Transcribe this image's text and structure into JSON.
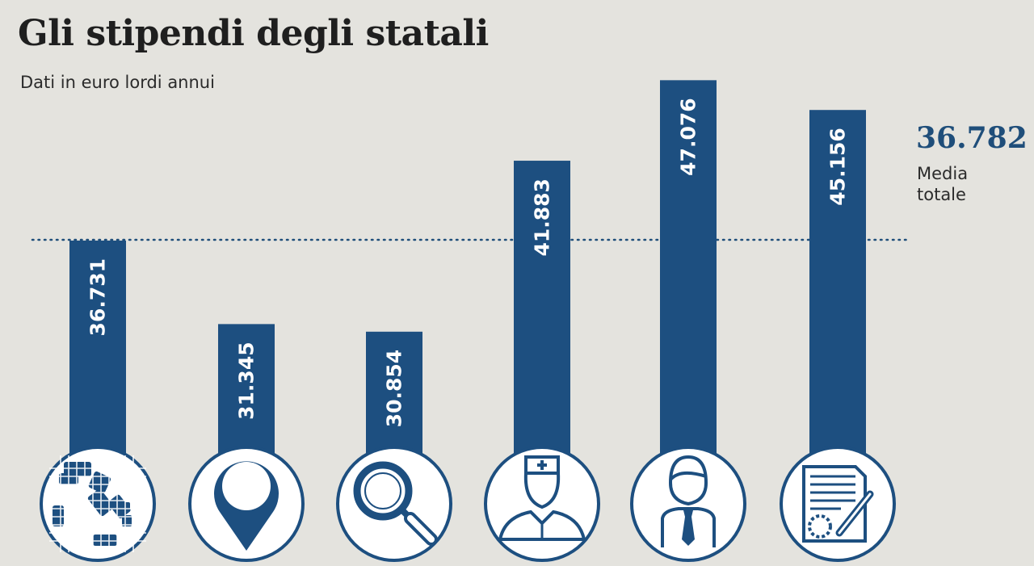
{
  "header": {
    "title": "Gli stipendi degli statali",
    "subtitle": "Dati in euro lordi annui"
  },
  "average": {
    "value_text": "36.782",
    "label": "Media totale"
  },
  "colors": {
    "bar": "#1d4f80",
    "background": "#e4e3de",
    "average_line": "#1f4e7a",
    "icon": "#1d4f80"
  },
  "chart_data": {
    "type": "bar",
    "categories": [
      "",
      "",
      "",
      "",
      "",
      ""
    ],
    "category_icons": [
      "italy-map-icon",
      "location-pin-icon",
      "magnifier-icon",
      "nurse-icon",
      "businessman-icon",
      "document-signature-icon"
    ],
    "values": [
      36731,
      31345,
      30854,
      41883,
      47076,
      45156
    ],
    "value_labels": [
      "36.731",
      "31.345",
      "30.854",
      "41.883",
      "47.076",
      "45.156"
    ],
    "title": "Gli stipendi degli statali",
    "subtitle": "Dati in euro lordi annui",
    "reference_line": {
      "value": 36782,
      "label": "36.782",
      "caption": "Media totale",
      "style": "dotted"
    },
    "xlabel": "",
    "ylabel": "",
    "ylim": [
      21000,
      48500
    ],
    "grid": false
  }
}
